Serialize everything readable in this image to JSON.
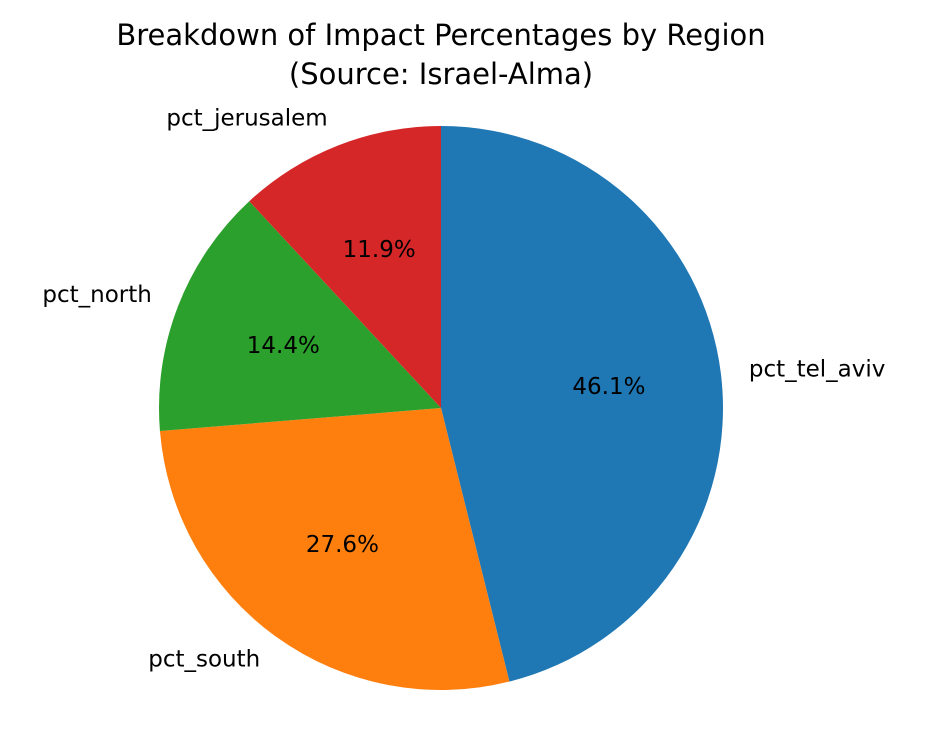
{
  "chart_data": {
    "type": "pie",
    "title": "Breakdown of Impact Percentages by Region",
    "subtitle": "(Source: Israel-Alma)",
    "categories": [
      "pct_tel_aviv",
      "pct_south",
      "pct_north",
      "pct_jerusalem"
    ],
    "values": [
      46.1,
      27.6,
      14.4,
      11.9
    ],
    "value_labels": [
      "46.1%",
      "27.6%",
      "14.4%",
      "11.9%"
    ],
    "colors": [
      "#1f77b4",
      "#ff7f0e",
      "#2ca02c",
      "#d62728"
    ],
    "start_angle_deg": 90,
    "direction": "clockwise",
    "legend": "none"
  }
}
